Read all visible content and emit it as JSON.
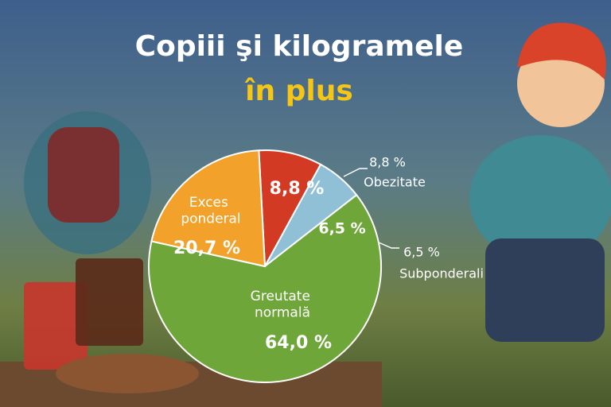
{
  "chart_data": {
    "type": "pie",
    "title": [
      "Copiii şi kilogramele",
      "în plus"
    ],
    "categories": [
      "Obezitate",
      "Subponderali",
      "Greutate normală",
      "Exces ponderal"
    ],
    "values": [
      8.8,
      6.5,
      64.0,
      20.7
    ],
    "value_labels": [
      "8,8 %",
      "6,5 %",
      "64,0 %",
      "20,7 %"
    ],
    "colors": [
      "#d33a24",
      "#8fc0d6",
      "#6fa63a",
      "#f2a22a"
    ]
  }
}
